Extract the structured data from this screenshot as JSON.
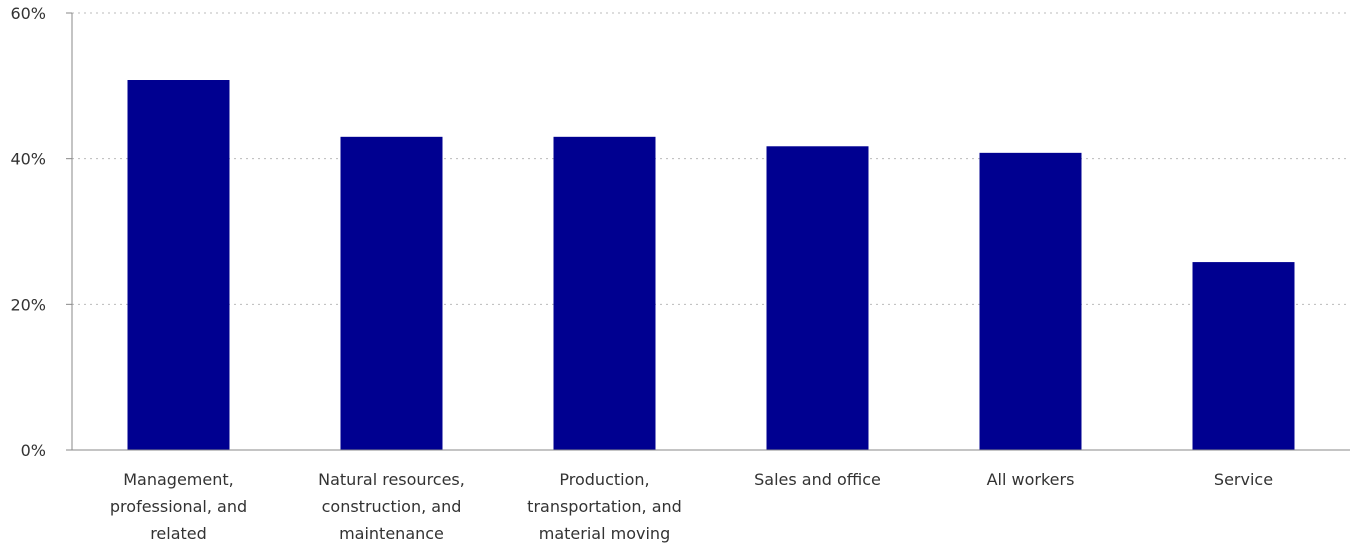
{
  "chart_data": {
    "type": "bar",
    "title": "",
    "xlabel": "",
    "ylabel": "",
    "ylim": [
      0,
      60
    ],
    "yticks": [
      0,
      20,
      40,
      60
    ],
    "ytick_labels": [
      "0%",
      "20%",
      "40%",
      "60%"
    ],
    "grid": true,
    "categories": [
      [
        "Management,",
        "professional, and",
        "related"
      ],
      [
        "Natural resources,",
        "construction, and",
        "maintenance"
      ],
      [
        "Production,",
        "transportation, and",
        "material moving"
      ],
      [
        "Sales and office"
      ],
      [
        "All workers"
      ],
      [
        "Service"
      ]
    ],
    "values": [
      50.8,
      43.0,
      43.0,
      41.7,
      40.8,
      25.8
    ],
    "bar_color": "#000090",
    "axis_color": "#888888",
    "grid_color": "#bbbbbb"
  }
}
